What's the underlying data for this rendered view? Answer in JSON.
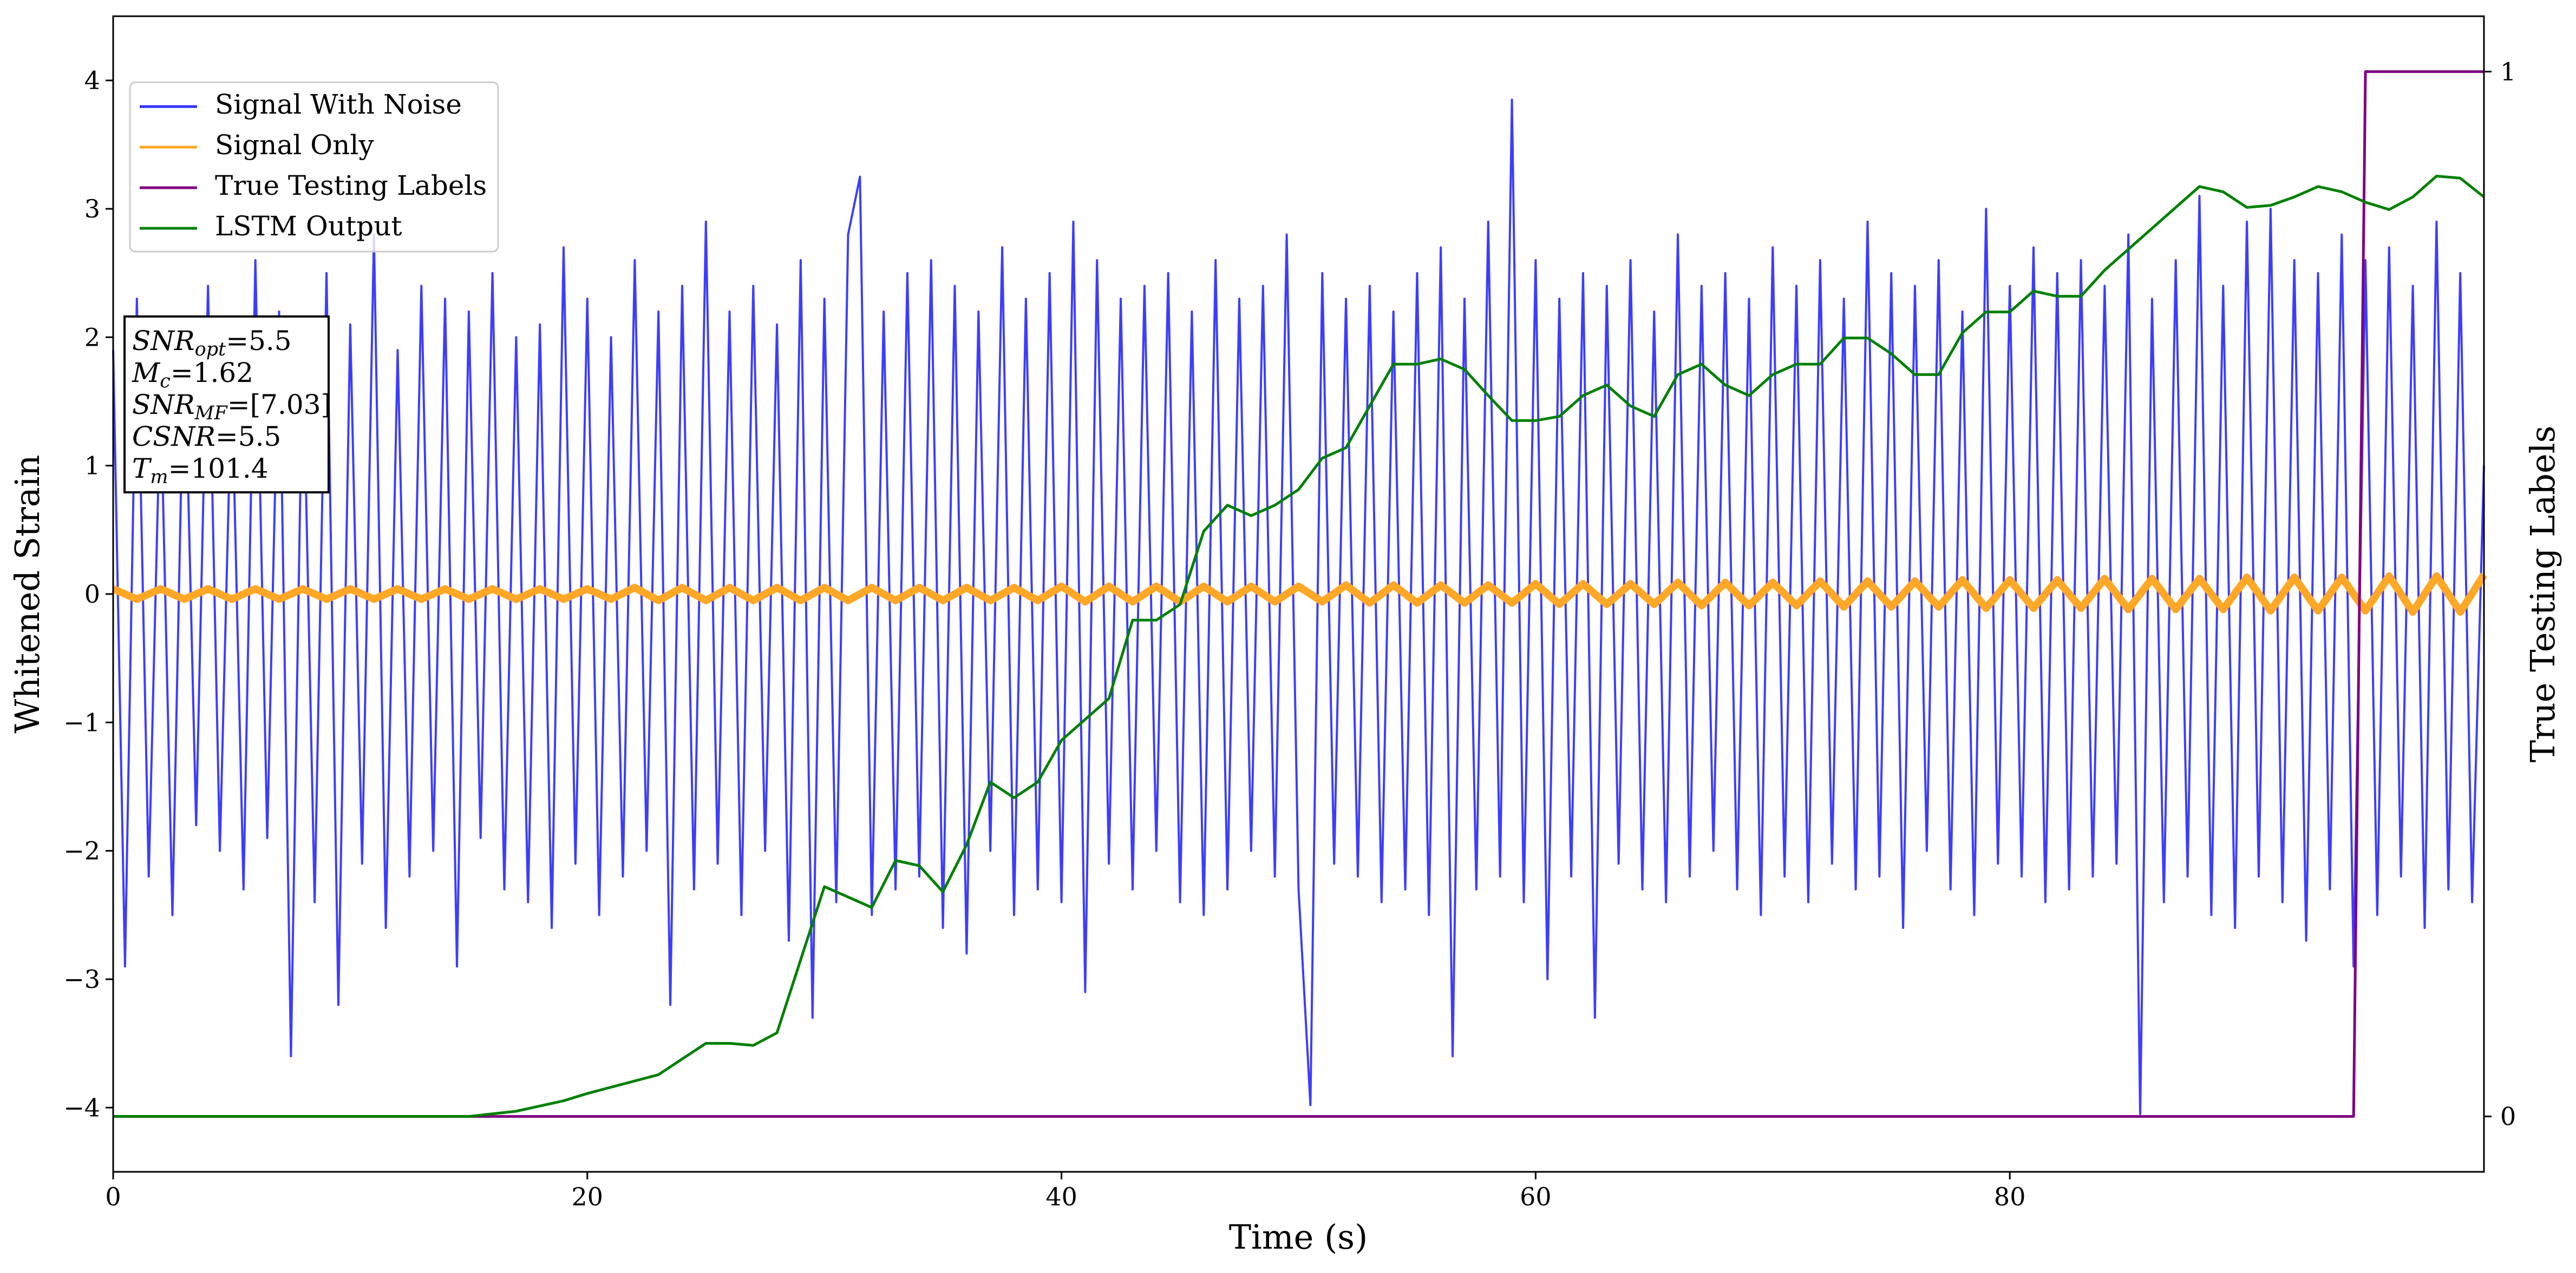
{
  "chart_data": {
    "type": "line",
    "xlabel": "Time (s)",
    "ylabel": "Whitened Strain",
    "y2label": "True Testing Labels",
    "xlim": [
      0,
      100
    ],
    "ylim": [
      -4.5,
      4.5
    ],
    "y2lim": [
      -0.053,
      1.053
    ],
    "xticks": [
      0,
      20,
      40,
      60,
      80
    ],
    "yticks": [
      {
        "value": -4,
        "label": "−4"
      },
      {
        "value": -3,
        "label": "−3"
      },
      {
        "value": -2,
        "label": "−2"
      },
      {
        "value": -1,
        "label": "−1"
      },
      0,
      1,
      2,
      3,
      4
    ],
    "y2ticks": [
      0,
      1
    ],
    "grid": false,
    "legend": "upper left",
    "annotation_lines": [
      {
        "symbol": "SNR",
        "sub": "opt",
        "text": "=5.5"
      },
      {
        "symbol": "M",
        "sub": "c",
        "text": "=1.62"
      },
      {
        "symbol": "SNR",
        "sub": "MF",
        "text": "=[7.03]"
      },
      {
        "symbol": "CSNR",
        "text": "=5.5"
      },
      {
        "symbol": "T",
        "sub": "m",
        "text": "=101.4"
      }
    ],
    "series": [
      {
        "name": "Signal With Noise",
        "color": "#3333ff",
        "axis": "y",
        "x": [
          0,
          0.5,
          1,
          1.5,
          2,
          2.5,
          3,
          3.5,
          4,
          4.5,
          5,
          5.5,
          6,
          6.5,
          7,
          7.5,
          8,
          8.5,
          9,
          9.5,
          10,
          10.5,
          11,
          11.5,
          12,
          12.5,
          13,
          13.5,
          14,
          14.5,
          15,
          15.5,
          16,
          16.5,
          17,
          17.5,
          18,
          18.5,
          19,
          19.5,
          20,
          20.5,
          21,
          21.5,
          22,
          22.5,
          23,
          23.5,
          24,
          24.5,
          25,
          25.5,
          26,
          26.5,
          27,
          27.5,
          28,
          28.5,
          29,
          29.5,
          30,
          30.5,
          31,
          31.5,
          32,
          32.5,
          33,
          33.5,
          34,
          34.5,
          35,
          35.5,
          36,
          36.5,
          37,
          37.5,
          38,
          38.5,
          39,
          39.5,
          40,
          40.5,
          41,
          41.5,
          42,
          42.5,
          43,
          43.5,
          44,
          44.5,
          45,
          45.5,
          46,
          46.5,
          47,
          47.5,
          48,
          48.5,
          49,
          49.5,
          50,
          50.5,
          51,
          51.5,
          52,
          52.5,
          53,
          53.5,
          54,
          54.5,
          55,
          55.5,
          56,
          56.5,
          57,
          57.5,
          58,
          58.5,
          59,
          59.5,
          60,
          60.5,
          61,
          61.5,
          62,
          62.5,
          63,
          63.5,
          64,
          64.5,
          65,
          65.5,
          66,
          66.5,
          67,
          67.5,
          68,
          68.5,
          69,
          69.5,
          70,
          70.5,
          71,
          71.5,
          72,
          72.5,
          73,
          73.5,
          74,
          74.5,
          75,
          75.5,
          76,
          76.5,
          77,
          77.5,
          78,
          78.5,
          79,
          79.5,
          80,
          80.5,
          81,
          81.5,
          82,
          82.5,
          83,
          83.5,
          84,
          84.5,
          85,
          85.5,
          86,
          86.5,
          87,
          87.5,
          88,
          88.5,
          89,
          89.5,
          90,
          90.5,
          91,
          91.5,
          92,
          92.5,
          93,
          93.5,
          94,
          94.5,
          95,
          95.5,
          96,
          96.5,
          97,
          97.5,
          98,
          98.5,
          99,
          99.5,
          100
        ],
        "values": [
          1.9,
          -2.9,
          2.3,
          -2.2,
          1.6,
          -2.5,
          2.1,
          -1.8,
          2.4,
          -2.0,
          1.7,
          -2.3,
          2.6,
          -1.9,
          2.2,
          -3.6,
          2.0,
          -2.4,
          2.5,
          -3.2,
          2.1,
          -2.1,
          2.8,
          -2.6,
          1.9,
          -2.2,
          2.4,
          -2.0,
          2.3,
          -2.9,
          2.2,
          -1.9,
          2.5,
          -2.3,
          2.0,
          -2.4,
          2.1,
          -2.6,
          2.7,
          -2.1,
          2.3,
          -2.5,
          2.0,
          -2.2,
          2.6,
          -2.0,
          2.2,
          -3.2,
          2.4,
          -2.3,
          2.9,
          -2.1,
          2.2,
          -2.5,
          2.4,
          -2.0,
          2.1,
          -2.7,
          2.6,
          -3.3,
          2.3,
          -2.4,
          2.8,
          3.25,
          -2.5,
          2.2,
          -2.3,
          2.5,
          -2.2,
          2.6,
          -2.6,
          2.4,
          -2.8,
          2.2,
          -2.0,
          2.7,
          -2.5,
          2.3,
          -2.3,
          2.5,
          -2.4,
          2.9,
          -3.1,
          2.6,
          -2.1,
          2.3,
          -2.3,
          2.4,
          -2.0,
          2.5,
          -2.4,
          2.2,
          -2.5,
          2.6,
          -2.3,
          2.3,
          -2.0,
          2.4,
          -2.2,
          2.8,
          -2.3,
          -3.98,
          2.5,
          -2.1,
          2.3,
          -2.2,
          2.4,
          -2.4,
          2.2,
          -2.3,
          2.5,
          -2.5,
          2.7,
          -3.6,
          2.3,
          -2.3,
          2.9,
          -2.2,
          3.85,
          -2.4,
          2.6,
          -3.0,
          2.3,
          -2.2,
          2.5,
          -3.3,
          2.4,
          -2.1,
          2.6,
          -2.3,
          2.2,
          -2.4,
          2.8,
          -2.2,
          2.4,
          -2.0,
          2.5,
          -2.3,
          2.3,
          -2.5,
          2.7,
          -2.2,
          2.4,
          -2.4,
          2.6,
          -2.1,
          2.3,
          -2.3,
          2.9,
          -2.2,
          2.5,
          -2.6,
          2.4,
          -2.0,
          2.6,
          -2.3,
          2.2,
          -2.5,
          3.0,
          -2.1,
          2.4,
          -2.2,
          2.7,
          -2.4,
          2.5,
          -2.3,
          2.6,
          -2.2,
          2.4,
          -2.1,
          2.8,
          -4.05,
          2.3,
          -2.4,
          2.6,
          -2.2,
          3.1,
          -2.5,
          2.4,
          -2.6,
          2.9,
          -2.2,
          3.0,
          -2.4,
          2.6,
          -2.7,
          2.5,
          -2.3,
          2.8,
          -2.9,
          2.6,
          -2.5,
          2.7,
          -2.2,
          2.4,
          -2.6,
          2.9,
          -2.3,
          2.5,
          -2.4,
          1.0
        ]
      },
      {
        "name": "Signal Only",
        "color": "#ffa726",
        "axis": "y",
        "x": [
          0,
          1,
          2,
          3,
          4,
          5,
          6,
          7,
          8,
          9,
          10,
          11,
          12,
          13,
          14,
          15,
          16,
          17,
          18,
          19,
          20,
          21,
          22,
          23,
          24,
          25,
          26,
          27,
          28,
          29,
          30,
          31,
          32,
          33,
          34,
          35,
          36,
          37,
          38,
          39,
          40,
          41,
          42,
          43,
          44,
          45,
          46,
          47,
          48,
          49,
          50,
          51,
          52,
          53,
          54,
          55,
          56,
          57,
          58,
          59,
          60,
          61,
          62,
          63,
          64,
          65,
          66,
          67,
          68,
          69,
          70,
          71,
          72,
          73,
          74,
          75,
          76,
          77,
          78,
          79,
          80,
          81,
          82,
          83,
          84,
          85,
          86,
          87,
          88,
          89,
          90,
          91,
          92,
          93,
          94,
          95,
          96,
          97,
          98,
          99,
          100
        ],
        "values": [
          0.04,
          -0.04,
          0.04,
          -0.04,
          0.04,
          -0.04,
          0.04,
          -0.04,
          0.04,
          -0.04,
          0.04,
          -0.04,
          0.04,
          -0.04,
          0.04,
          -0.04,
          0.04,
          -0.04,
          0.04,
          -0.04,
          0.04,
          -0.04,
          0.05,
          -0.05,
          0.05,
          -0.05,
          0.05,
          -0.05,
          0.05,
          -0.05,
          0.05,
          -0.05,
          0.05,
          -0.05,
          0.05,
          -0.05,
          0.05,
          -0.05,
          0.05,
          -0.05,
          0.06,
          -0.06,
          0.06,
          -0.06,
          0.06,
          -0.06,
          0.06,
          -0.06,
          0.06,
          -0.06,
          0.06,
          -0.06,
          0.07,
          -0.07,
          0.07,
          -0.07,
          0.07,
          -0.07,
          0.07,
          -0.07,
          0.08,
          -0.08,
          0.08,
          -0.08,
          0.08,
          -0.08,
          0.09,
          -0.09,
          0.09,
          -0.09,
          0.09,
          -0.09,
          0.1,
          -0.1,
          0.1,
          -0.1,
          0.1,
          -0.1,
          0.11,
          -0.11,
          0.11,
          -0.11,
          0.11,
          -0.11,
          0.12,
          -0.12,
          0.12,
          -0.12,
          0.12,
          -0.12,
          0.13,
          -0.13,
          0.13,
          -0.13,
          0.13,
          -0.13,
          0.14,
          -0.14,
          0.14,
          -0.14,
          0.15
        ]
      },
      {
        "name": "True Testing Labels",
        "color": "#800080",
        "axis": "y2",
        "x": [
          0,
          94.5,
          95,
          100
        ],
        "values": [
          0,
          0,
          1,
          1
        ]
      },
      {
        "name": "LSTM Output",
        "color": "#008000",
        "axis": "y2",
        "x": [
          0,
          15,
          17,
          19,
          20,
          23,
          25,
          26,
          27,
          28,
          29,
          30,
          31,
          32,
          33,
          34,
          35,
          36,
          37,
          38,
          39,
          40,
          41,
          42,
          43,
          44,
          45,
          46,
          47,
          48,
          49,
          50,
          51,
          52,
          53,
          54,
          55,
          56,
          57,
          58,
          59,
          60,
          61,
          62,
          63,
          64,
          65,
          66,
          67,
          68,
          69,
          70,
          71,
          72,
          73,
          74,
          75,
          76,
          77,
          78,
          79,
          80,
          81,
          82,
          83,
          84,
          85,
          86,
          87,
          88,
          89,
          90,
          91,
          92,
          93,
          94,
          95,
          96,
          97,
          98,
          99,
          100
        ],
        "values": [
          0,
          0,
          0.005,
          0.015,
          0.022,
          0.04,
          0.07,
          0.07,
          0.068,
          0.08,
          0.15,
          0.22,
          0.21,
          0.2,
          0.245,
          0.24,
          0.215,
          0.26,
          0.32,
          0.305,
          0.32,
          0.36,
          0.38,
          0.4,
          0.475,
          0.475,
          0.49,
          0.56,
          0.585,
          0.575,
          0.585,
          0.6,
          0.63,
          0.64,
          0.68,
          0.72,
          0.72,
          0.725,
          0.715,
          0.69,
          0.666,
          0.666,
          0.67,
          0.69,
          0.7,
          0.68,
          0.67,
          0.71,
          0.72,
          0.7,
          0.69,
          0.71,
          0.72,
          0.72,
          0.745,
          0.745,
          0.73,
          0.71,
          0.71,
          0.75,
          0.77,
          0.77,
          0.79,
          0.785,
          0.785,
          0.81,
          0.83,
          0.85,
          0.87,
          0.89,
          0.885,
          0.87,
          0.872,
          0.88,
          0.89,
          0.885,
          0.875,
          0.868,
          0.88,
          0.9,
          0.898,
          0.88
        ]
      }
    ]
  }
}
